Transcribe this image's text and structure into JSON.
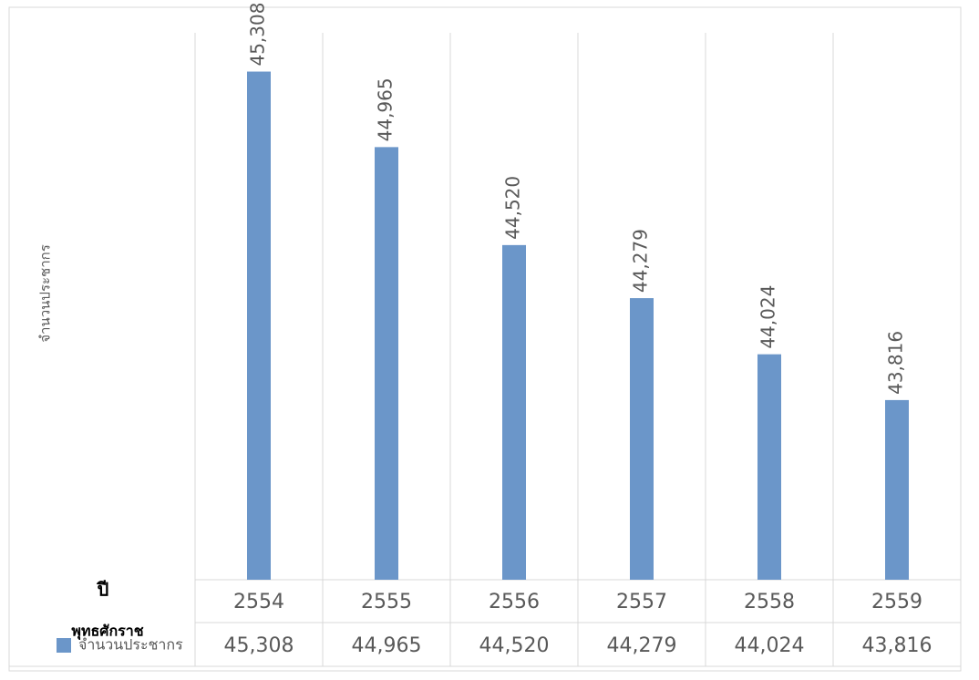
{
  "chart_data": {
    "type": "bar",
    "y_title": "จำนวนประชากร",
    "x_title": "ปี",
    "table_label": "พุทธศักราช",
    "categories": [
      "2554",
      "2555",
      "2556",
      "2557",
      "2558",
      "2559"
    ],
    "series": [
      {
        "name": "จำนวนประชากร",
        "color": "#6b96c9",
        "values": [
          45308,
          44965,
          44520,
          44279,
          44024,
          43816
        ],
        "value_labels": [
          "45,308",
          "44,965",
          "44,520",
          "44,279",
          "44,024",
          "43,816"
        ]
      }
    ],
    "ylim": [
      43000,
      45600
    ]
  }
}
